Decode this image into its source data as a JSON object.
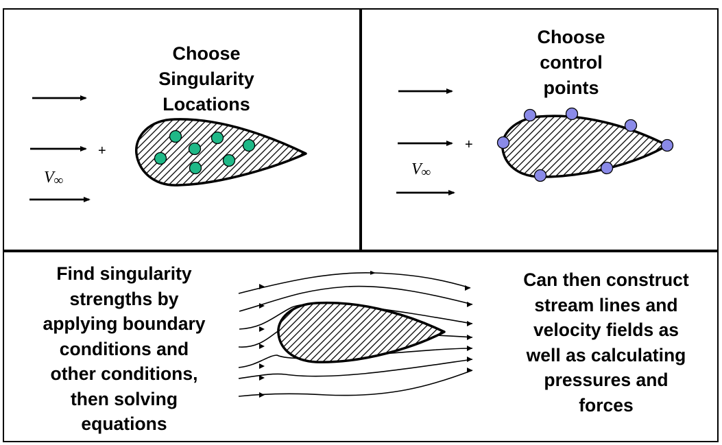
{
  "panels": {
    "singularities": {
      "title_lines": [
        "Choose",
        "Singularity",
        "Locations"
      ],
      "freestream_symbol": "V",
      "freestream_subscript": "∞",
      "plus_sign": "+",
      "marker_color": "#1fb887",
      "marker_count": 7
    },
    "control_points": {
      "title_lines": [
        "Choose",
        "control",
        "points"
      ],
      "freestream_symbol": "V",
      "freestream_subscript": "∞",
      "plus_sign": "+",
      "marker_color": "#8a8ae8",
      "marker_count": 7
    },
    "solution": {
      "left_text_lines": [
        "Find singularity",
        "strengths by",
        "applying  boundary",
        "conditions and",
        "other conditions,",
        "then solving",
        "equations"
      ],
      "right_text_lines": [
        "Can then construct",
        "stream lines and",
        "velocity fields as",
        "well as calculating",
        "pressures and",
        "forces"
      ]
    }
  }
}
